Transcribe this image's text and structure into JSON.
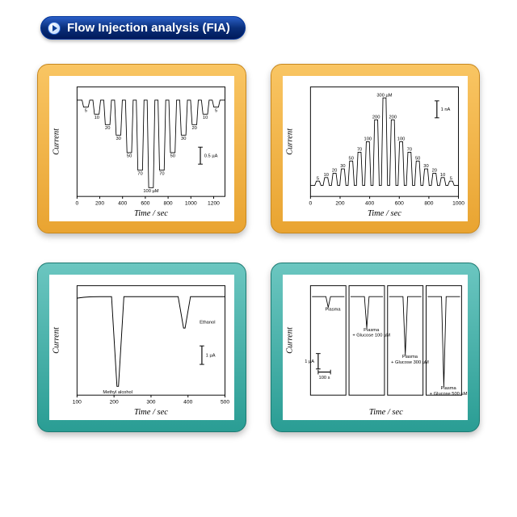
{
  "title": "Flow Injection analysis (FIA)",
  "colors": {
    "button_gradient_top": "#2a5fc8",
    "button_gradient_bottom": "#001a5a",
    "orange_panel_top": "#f9c563",
    "orange_panel_bottom": "#e9a431",
    "teal_panel_top": "#6bc6c0",
    "teal_panel_bottom": "#2a9d94",
    "chart_bg": "#ffffff",
    "line_color": "#000000"
  },
  "chart_a": {
    "type": "peaks-down",
    "xlabel": "Time / sec",
    "ylabel": "Current",
    "xlim": [
      0,
      1300
    ],
    "xticks": [
      0,
      200,
      400,
      600,
      800,
      1000,
      1200
    ],
    "peak_labels": [
      "5",
      "10",
      "20",
      "30",
      "50",
      "70",
      "100 µM",
      "70",
      "50",
      "30",
      "20",
      "10",
      "5"
    ],
    "peak_rel_heights": [
      0.08,
      0.16,
      0.28,
      0.4,
      0.6,
      0.8,
      1.0,
      0.8,
      0.6,
      0.4,
      0.28,
      0.16,
      0.08
    ],
    "scale_bar": "0.5 µA",
    "baseline_y": 0.12
  },
  "chart_b": {
    "type": "peaks-up",
    "xlabel": "Time / sec",
    "ylabel": "Current",
    "xlim": [
      0,
      1000
    ],
    "xticks": [
      0,
      200,
      400,
      600,
      800,
      1000
    ],
    "peak_labels": [
      "5",
      "10",
      "20",
      "30",
      "50",
      "70",
      "100",
      "200",
      "300 µM",
      "200",
      "100",
      "70",
      "50",
      "30",
      "20",
      "10",
      "5"
    ],
    "peak_rel_heights": [
      0.05,
      0.09,
      0.14,
      0.19,
      0.28,
      0.38,
      0.5,
      0.75,
      1.0,
      0.75,
      0.5,
      0.38,
      0.28,
      0.19,
      0.14,
      0.09,
      0.05
    ],
    "scale_bar": "1 nA",
    "baseline_y": 0.9
  },
  "chart_c": {
    "type": "line-peaks-down",
    "xlabel": "Time / sec",
    "ylabel": "Current",
    "xlim": [
      100,
      500
    ],
    "xticks": [
      100,
      200,
      300,
      400,
      500
    ],
    "peaks": [
      {
        "x": 210,
        "depth": 1.0,
        "label": "Methyl alcohol",
        "label_side": "below"
      },
      {
        "x": 390,
        "depth": 0.35,
        "label": "Ethanol",
        "label_side": "above"
      }
    ],
    "scale_bar": "1 µA",
    "baseline_y": 0.1
  },
  "chart_d": {
    "type": "multi-strip",
    "xlabel": "Time / sec",
    "ylabel": "Current",
    "scale_bars": {
      "y": "1 µA",
      "x": "100 s"
    },
    "strips": [
      {
        "label": "Plasma",
        "depth": 0.12
      },
      {
        "label": "Plasma\\n+ Glucose 100 µM",
        "depth": 0.35
      },
      {
        "label": "Plasma\\n+ Glucose 300 µM",
        "depth": 0.65
      },
      {
        "label": "Plasma\\n+ Glucose 500 µM",
        "depth": 1.0
      }
    ],
    "baseline_y": 0.1
  }
}
